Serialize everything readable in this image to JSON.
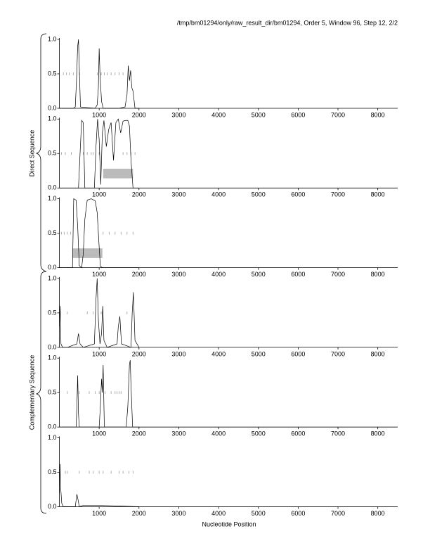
{
  "title": "/tmp/bm01294/only/raw_result_dir/bm01294, Order 5, Window 96, Step 12, 2/2",
  "x_label": "Nucleotide Position",
  "direct_label": "Direct Sequence",
  "complementary_label": "Complementary Sequence",
  "chart_data": [
    {
      "type": "line",
      "xlim": [
        0,
        8500
      ],
      "xticks": [
        1000,
        2000,
        3000,
        4000,
        5000,
        6000,
        7000,
        8000
      ],
      "ylim": [
        0,
        1
      ],
      "yticks": [
        {
          "value": 0,
          "label": "0.0"
        },
        0.5,
        {
          "value": 1,
          "label": "1.0"
        }
      ],
      "series": [
        {
          "color": "#000000",
          "x": [
            0,
            350,
            400,
            430,
            460,
            480,
            500,
            530,
            900,
            950,
            980,
            1000,
            1020,
            1060,
            1100,
            1500,
            1650,
            1700,
            1730,
            1760,
            1790,
            1820,
            1850,
            1880,
            1900,
            2000
          ],
          "values": [
            0,
            0,
            0.02,
            0.4,
            0.9,
            1.0,
            0.6,
            0.02,
            0,
            0.05,
            0.3,
            0.87,
            0.5,
            0.1,
            0,
            0,
            0.02,
            0.2,
            0.62,
            0.4,
            0.55,
            0.3,
            0.25,
            0.1,
            0,
            0
          ]
        }
      ],
      "markers": [
        100,
        180,
        250,
        350,
        500,
        950,
        1050,
        1130,
        1200,
        1300,
        1400,
        1500,
        1600
      ],
      "marker_color": "#999999",
      "regions": [],
      "region_color": "#bbbbbb"
    },
    {
      "type": "line",
      "xlim": [
        0,
        8500
      ],
      "xticks": [
        1000,
        2000,
        3000,
        4000,
        5000,
        6000,
        7000,
        8000
      ],
      "ylim": [
        0,
        1
      ],
      "yticks": [
        {
          "value": 0,
          "label": "0.0"
        },
        0.5,
        {
          "value": 1,
          "label": "1.0"
        }
      ],
      "series": [
        {
          "color": "#000000",
          "x": [
            0,
            480,
            520,
            560,
            600,
            640,
            880,
            920,
            960,
            1000,
            1040,
            1080,
            1120,
            1180,
            1240,
            1300,
            1360,
            1420,
            1480,
            1540,
            1600,
            1660,
            1720,
            1760,
            1800,
            1850,
            2000
          ],
          "values": [
            0,
            0,
            0.5,
            0.98,
            0.95,
            0,
            0,
            0.6,
            1.0,
            0.7,
            0.05,
            0.8,
            0.98,
            0.6,
            0.85,
            0.95,
            0.4,
            0.95,
            1.0,
            0.8,
            0.97,
            0.98,
            0.98,
            0.9,
            0.4,
            0,
            0
          ]
        }
      ],
      "markers": [
        50,
        150,
        300,
        600,
        700,
        800,
        850,
        1000,
        1600,
        1700,
        1800,
        1900
      ],
      "marker_color": "#999999",
      "regions": [
        [
          1100,
          1850
        ]
      ],
      "region_color": "#bbbbbb"
    },
    {
      "type": "line",
      "xlim": [
        0,
        8500
      ],
      "xticks": [
        1000,
        2000,
        3000,
        4000,
        5000,
        6000,
        7000,
        8000
      ],
      "ylim": [
        0,
        1
      ],
      "yticks": [
        {
          "value": 0,
          "label": "0.0"
        },
        0.5,
        {
          "value": 1,
          "label": "1.0"
        }
      ],
      "series": [
        {
          "color": "#000000",
          "x": [
            0,
            330,
            360,
            420,
            460,
            500,
            560,
            600,
            640,
            700,
            800,
            900,
            950,
            1000,
            1030,
            1080,
            2000
          ],
          "values": [
            0,
            0,
            1.0,
            0.98,
            0.6,
            0.03,
            0,
            0.2,
            0.7,
            0.98,
            1.0,
            0.97,
            0.8,
            0.3,
            0.02,
            0,
            0
          ]
        }
      ],
      "markers": [
        50,
        120,
        200,
        280,
        1100,
        1250,
        1400,
        1550,
        1700,
        1850
      ],
      "marker_color": "#999999",
      "regions": [
        [
          330,
          1080
        ]
      ],
      "region_color": "#bbbbbb"
    },
    {
      "type": "line",
      "xlim": [
        0,
        8500
      ],
      "xticks": [
        1000,
        2000,
        3000,
        4000,
        5000,
        6000,
        7000,
        8000
      ],
      "ylim": [
        0,
        1
      ],
      "yticks": [
        {
          "value": 0,
          "label": "0.0"
        },
        0.5,
        {
          "value": 1,
          "label": "1.0"
        }
      ],
      "series": [
        {
          "color": "#000000",
          "x": [
            0,
            20,
            40,
            80,
            200,
            440,
            480,
            520,
            600,
            880,
            920,
            950,
            980,
            1020,
            1060,
            1090,
            1120,
            1200,
            1450,
            1480,
            1520,
            1560,
            1800,
            1830,
            1860,
            1900,
            2000
          ],
          "values": [
            0.3,
            0.6,
            0.05,
            0,
            0,
            0.05,
            0.2,
            0.05,
            0,
            0.05,
            0.7,
            1.0,
            0.4,
            0.05,
            0.2,
            0.6,
            0.1,
            0,
            0.05,
            0.3,
            0.45,
            0.05,
            0,
            0.5,
            0.8,
            0.1,
            0
          ]
        }
      ],
      "markers": [
        200,
        700,
        850,
        1050,
        1700
      ],
      "marker_color": "#999999",
      "regions": [],
      "region_color": "#bbbbbb"
    },
    {
      "type": "line",
      "xlim": [
        0,
        8500
      ],
      "xticks": [
        1000,
        2000,
        3000,
        4000,
        5000,
        6000,
        7000,
        8000
      ],
      "ylim": [
        0,
        1
      ],
      "yticks": [
        {
          "value": 0,
          "label": "0.0"
        },
        0.5,
        {
          "value": 1,
          "label": "1.0"
        }
      ],
      "series": [
        {
          "color": "#000000",
          "x": [
            0,
            420,
            440,
            460,
            480,
            500,
            1000,
            1030,
            1060,
            1080,
            1100,
            1130,
            1680,
            1720,
            1760,
            1780,
            1800,
            1840,
            2000
          ],
          "values": [
            0,
            0,
            0.3,
            0.75,
            0.2,
            0,
            0,
            0.3,
            0.7,
            0.5,
            0.9,
            0,
            0,
            0.3,
            0.9,
            0.97,
            0.6,
            0,
            0
          ]
        }
      ],
      "markers": [
        200,
        500,
        750,
        900,
        1000,
        1150,
        1300,
        1400,
        1450,
        1500,
        1550
      ],
      "marker_color": "#999999",
      "regions": [],
      "region_color": "#bbbbbb"
    },
    {
      "type": "line",
      "xlim": [
        0,
        8500
      ],
      "xticks": [
        1000,
        2000,
        3000,
        4000,
        5000,
        6000,
        7000,
        8000
      ],
      "ylim": [
        0,
        1
      ],
      "yticks": [
        {
          "value": 0,
          "label": "0.0"
        },
        0.5,
        {
          "value": 1,
          "label": "1.0"
        }
      ],
      "series": [
        {
          "color": "#000000",
          "x": [
            0,
            15,
            30,
            60,
            100,
            400,
            440,
            470,
            500,
            600,
            1000,
            2000
          ],
          "values": [
            0.2,
            0.62,
            0.3,
            0.05,
            0,
            0,
            0.18,
            0.1,
            0,
            0.02,
            0.02,
            0
          ]
        }
      ],
      "markers": [
        150,
        200,
        500,
        750,
        850,
        1000,
        1100,
        1300,
        1500,
        1600,
        1750,
        1850
      ],
      "marker_color": "#999999",
      "regions": [],
      "region_color": "#bbbbbb"
    }
  ]
}
